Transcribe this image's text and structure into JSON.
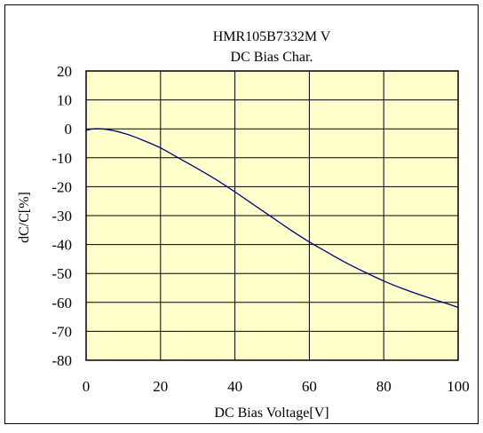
{
  "chart_data": {
    "type": "line",
    "title": "HMR105B7332M V",
    "subtitle": "DC Bias Char.",
    "xlabel": "DC Bias Voltage[V]",
    "ylabel": "dC/C[%]",
    "xlim": [
      0,
      100
    ],
    "ylim": [
      -80,
      20
    ],
    "xticks": [
      "0",
      "20",
      "40",
      "60",
      "80",
      "100"
    ],
    "yticks": [
      "20",
      "10",
      "0",
      "-10",
      "-20",
      "-30",
      "-40",
      "-50",
      "-60",
      "-70",
      "-80"
    ],
    "grid": true,
    "plot_background": "#ffffcc",
    "line_color": "#000080",
    "series": [
      {
        "x": [
          0,
          2,
          4,
          6,
          8,
          10,
          12,
          15,
          20,
          25,
          30,
          35,
          40,
          45,
          50,
          55,
          60,
          65,
          70,
          75,
          80,
          85,
          90,
          95,
          100
        ],
        "y": [
          -0.5,
          0,
          0,
          -0.3,
          -0.8,
          -1.5,
          -2.3,
          -3.8,
          -6.6,
          -10.2,
          -13.8,
          -17.6,
          -21.8,
          -26.2,
          -30.6,
          -35,
          -39.1,
          -42.8,
          -46.4,
          -49.6,
          -52.6,
          -55.2,
          -57.5,
          -59.6,
          -61.7
        ]
      }
    ]
  }
}
